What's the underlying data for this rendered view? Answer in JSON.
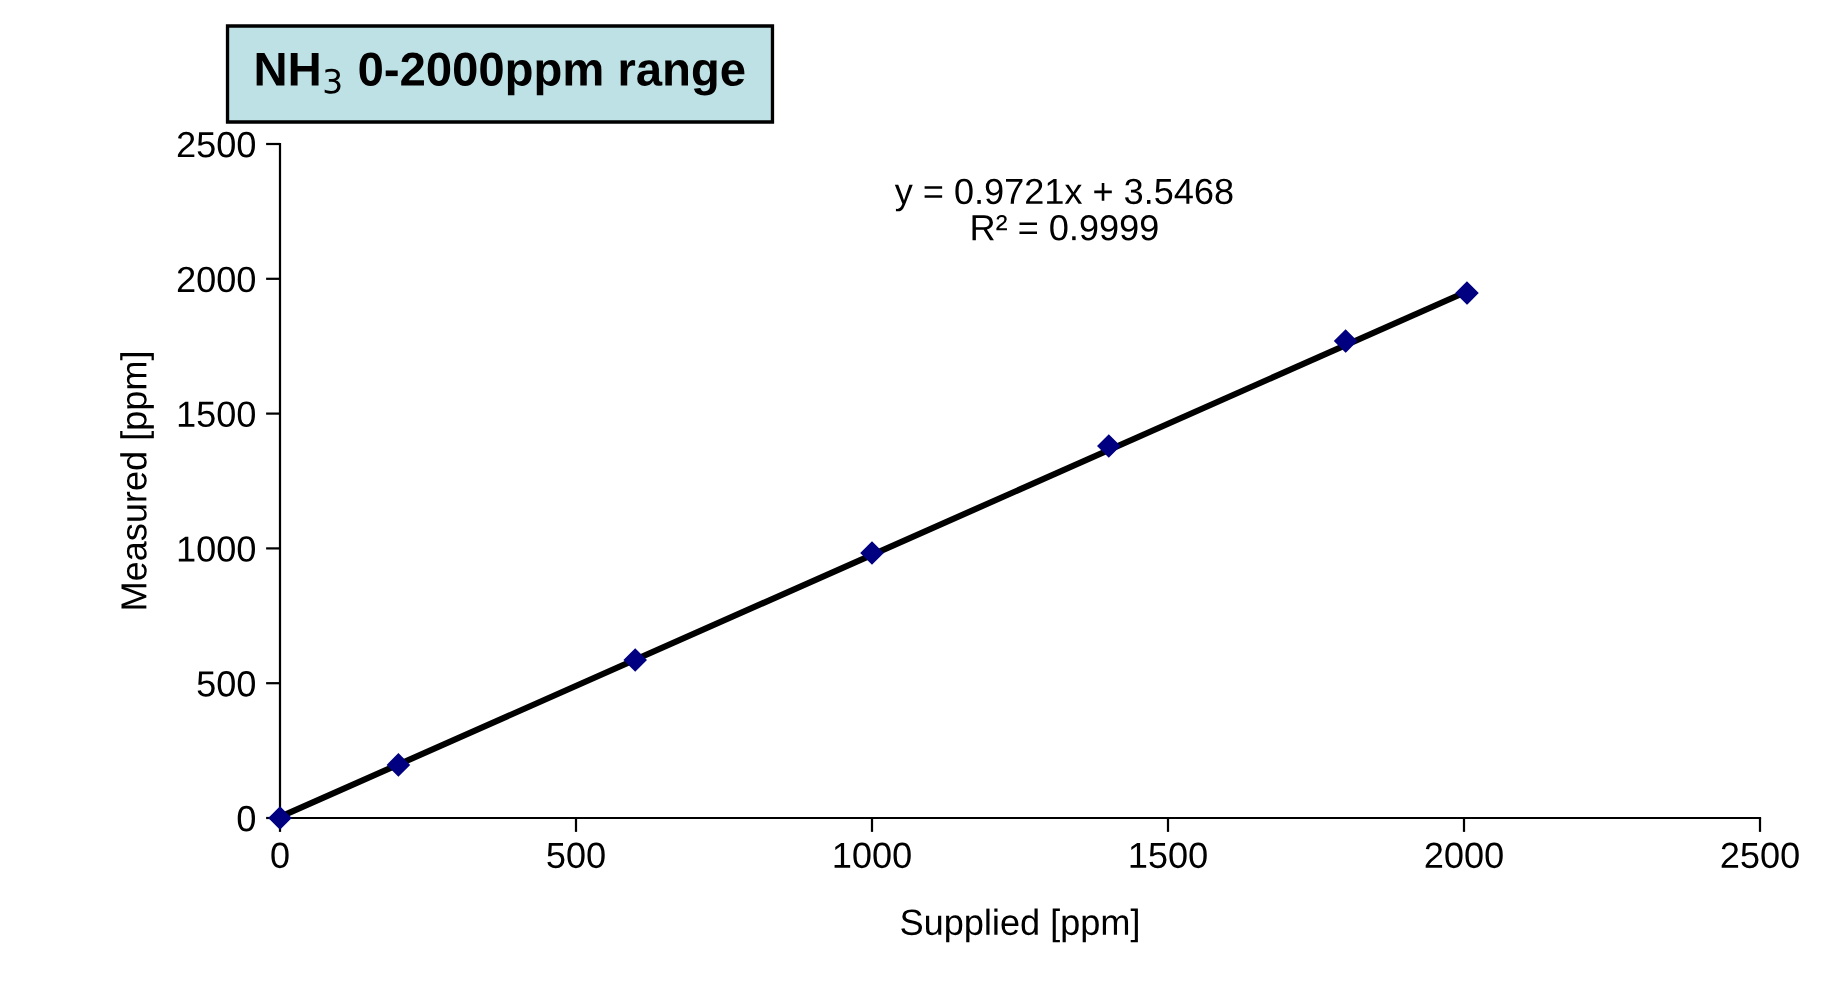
{
  "chart_data": {
    "type": "scatter",
    "title": "NH$_{3}$ 0-2000ppm range",
    "xlabel": "Supplied [ppm]",
    "ylabel": "Measured [ppm]",
    "x": [
      0,
      200,
      600,
      1000,
      1400,
      1800,
      2005
    ],
    "series": [
      {
        "color": "#000080",
        "marker": "diamond",
        "values": [
          0,
          197,
          586,
          983,
          1380,
          1769,
          1947
        ]
      },
      {
        "type": "line",
        "color": "#000000",
        "x": [
          0,
          2005
        ],
        "values": [
          4,
          1953
        ],
        "marker": "none",
        "line_style": "solid"
      }
    ],
    "annotations": [
      "y = 0.9721x + 3.5468\nR² = 0.9999"
    ],
    "xlim": [
      0,
      2500
    ],
    "ylim": [
      0,
      2500
    ],
    "xticks": [
      0,
      500,
      1000,
      1500,
      2000,
      2500
    ],
    "yticks": [
      0,
      500,
      1000,
      1500,
      2000,
      2500
    ],
    "grid": false,
    "legend": false
  }
}
